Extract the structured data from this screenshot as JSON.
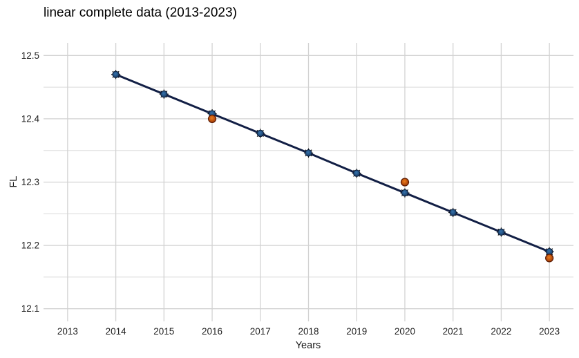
{
  "title": "linear complete data (2013-2023)",
  "colors": {
    "background": "#ffffff",
    "title_text": "#000000",
    "tick_text": "#1f1f1f",
    "axis_title_text": "#1a1a1a",
    "grid_major": "#d2d2d2",
    "grid_minor": "#dbdbdb",
    "fit_line": "#121f45",
    "fit_point_center": "#3573ad",
    "fit_point_edge": "#16365e",
    "fit_point_stroke": "#0b1c38",
    "asterisk": "#000000",
    "observed_center": "#ec7d1c",
    "observed_edge": "#9a3305",
    "observed_stroke": "#571700"
  },
  "chart_data": {
    "type": "line",
    "title": "linear complete data (2013-2023)",
    "xlabel": "Years",
    "ylabel": "FL",
    "xlim": [
      2012.5,
      2023.5
    ],
    "ylim": [
      12.08,
      12.52
    ],
    "x_major_ticks": [
      2013,
      2014,
      2015,
      2016,
      2017,
      2018,
      2019,
      2020,
      2021,
      2022,
      2023
    ],
    "x_tick_labels": [
      "2013",
      "2014",
      "2015",
      "2016",
      "2017",
      "2018",
      "2019",
      "2020",
      "2021",
      "2022",
      "2023"
    ],
    "y_major_ticks": [
      12.1,
      12.2,
      12.3,
      12.4,
      12.5
    ],
    "y_tick_labels": [
      "12.1",
      "12.2",
      "12.3",
      "12.4",
      "12.5"
    ],
    "y_minor_ticks": [
      12.15,
      12.25,
      12.35,
      12.45
    ],
    "grid": true,
    "legend": false,
    "series": [
      {
        "name": "fitted-linear-trend",
        "type": "line+points",
        "marker": "asterisk-under-circle",
        "x": [
          2014,
          2015,
          2016,
          2017,
          2018,
          2019,
          2020,
          2021,
          2022,
          2023
        ],
        "y": [
          12.47,
          12.439,
          12.408,
          12.377,
          12.346,
          12.314,
          12.283,
          12.252,
          12.221,
          12.19
        ]
      },
      {
        "name": "observed-points",
        "type": "points",
        "marker": "circle",
        "x": [
          2016,
          2020,
          2023
        ],
        "y": [
          12.4,
          12.3,
          12.18
        ]
      }
    ]
  }
}
